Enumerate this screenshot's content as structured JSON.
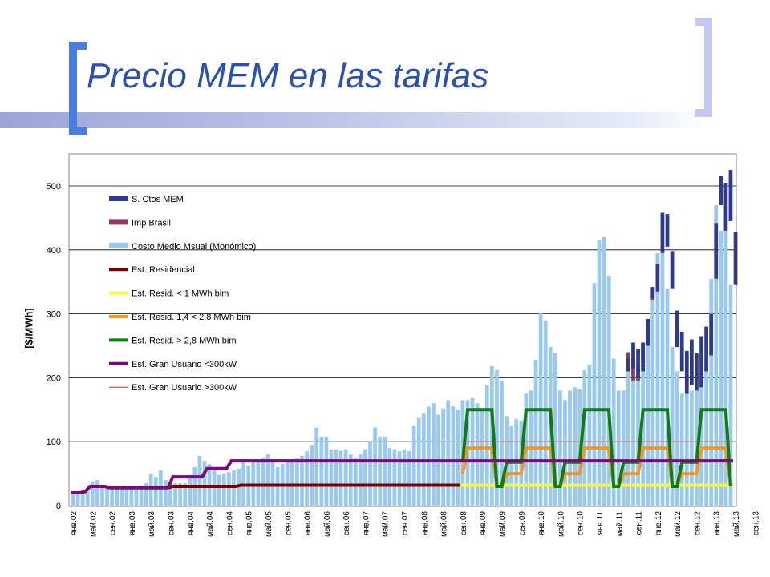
{
  "slide": {
    "title": "Precio MEM en las tarifas"
  },
  "chart_data": {
    "type": "bar",
    "ylabel": "[$/MWh]",
    "xlabel": "",
    "ylim": [
      0,
      550
    ],
    "yticks": [
      0,
      100,
      200,
      300,
      400,
      500
    ],
    "grid": true,
    "legend_position": "top-left",
    "start_month": "янв.02",
    "x_tick_labels": [
      "янв.02",
      "май.02",
      "сен.02",
      "янв.03",
      "май.03",
      "сен.03",
      "янв.04",
      "май.04",
      "сен.04",
      "янв.05",
      "май.05",
      "сен.05",
      "янв.06",
      "май.06",
      "сен.06",
      "янв.07",
      "май.07",
      "сен.07",
      "янв.08",
      "май.08",
      "сен.08",
      "янв.09",
      "май.09",
      "сен.09",
      "янв.10",
      "май.10",
      "сен.10",
      "янв.11",
      "май.11",
      "сен.11",
      "янв.12",
      "май.12",
      "сен.12",
      "янв.13",
      "май.13",
      "сен.13"
    ],
    "legend": [
      {
        "label": "S. Ctos MEM",
        "color": "#2e3a8f",
        "kind": "bar"
      },
      {
        "label": "Imp Brasil",
        "color": "#8b3a62",
        "kind": "bar"
      },
      {
        "label": "Costo Medio Msual (Monómico)",
        "color": "#99c8f0",
        "kind": "bar"
      },
      {
        "label": "Est. Residencial",
        "color": "#7a0000",
        "kind": "line"
      },
      {
        "label": "Est. Resid. < 1 MWh bim",
        "color": "#f5f542",
        "kind": "line"
      },
      {
        "label": "Est. Resid. 1,4 < 2,8 MWh bim",
        "color": "#f5961e",
        "kind": "line"
      },
      {
        "label": "Est. Resid. > 2,8 MWh bim",
        "color": "#0e7e0e",
        "kind": "line"
      },
      {
        "label": "Est. Gran Usuario <300kW",
        "color": "#7a0a7a",
        "kind": "line"
      },
      {
        "label": "Est. Gran Usuario >300kW",
        "color": "#e03030",
        "kind": "thinline"
      }
    ],
    "series": [
      {
        "name": "Costo Medio Msual (Monómico)",
        "values": [
          20,
          22,
          24,
          27,
          38,
          40,
          30,
          30,
          28,
          28,
          28,
          28,
          28,
          30,
          32,
          35,
          50,
          45,
          55,
          40,
          38,
          35,
          35,
          35,
          48,
          60,
          78,
          70,
          65,
          60,
          48,
          50,
          52,
          55,
          58,
          70,
          62,
          68,
          72,
          75,
          80,
          72,
          60,
          65,
          68,
          72,
          75,
          78,
          85,
          95,
          122,
          108,
          108,
          88,
          88,
          86,
          88,
          80,
          75,
          80,
          88,
          100,
          122,
          108,
          108,
          90,
          88,
          85,
          88,
          85,
          125,
          138,
          145,
          155,
          160,
          142,
          152,
          165,
          155,
          150,
          165,
          165,
          168,
          160,
          150,
          188,
          218,
          212,
          195,
          140,
          125,
          135,
          133,
          175,
          180,
          228,
          302,
          290,
          248,
          238,
          180,
          165,
          180,
          185,
          182,
          212,
          220,
          348,
          415,
          420,
          360,
          230,
          180,
          180,
          210,
          195,
          195,
          225,
          262,
          322,
          395,
          400,
          340,
          248,
          210,
          175,
          185,
          180,
          185,
          210,
          235,
          355,
          470,
          430,
          440,
          345
        ]
      },
      {
        "name": "Imp Brasil",
        "values": [
          0,
          0,
          0,
          0,
          0,
          0,
          0,
          0,
          0,
          0,
          0,
          0,
          0,
          0,
          0,
          0,
          0,
          0,
          0,
          0,
          0,
          0,
          0,
          0,
          0,
          0,
          0,
          0,
          0,
          0,
          0,
          0,
          0,
          0,
          0,
          0,
          0,
          0,
          0,
          0,
          0,
          0,
          0,
          0,
          0,
          0,
          0,
          0,
          0,
          0,
          0,
          0,
          0,
          0,
          0,
          0,
          0,
          0,
          0,
          0,
          0,
          0,
          0,
          0,
          0,
          0,
          0,
          0,
          0,
          0,
          0,
          0,
          0,
          0,
          0,
          0,
          0,
          0,
          0,
          0,
          0,
          0,
          0,
          0,
          0,
          0,
          0,
          0,
          0,
          0,
          0,
          0,
          0,
          0,
          0,
          0,
          0,
          0,
          0,
          0,
          0,
          0,
          0,
          0,
          0,
          0,
          0,
          0,
          0,
          0,
          0,
          0,
          0,
          0,
          30,
          35,
          25,
          30,
          25,
          18,
          0,
          0,
          0,
          0,
          0,
          0,
          0,
          0,
          0,
          0,
          0,
          0,
          0,
          0,
          0,
          0
        ]
      },
      {
        "name": "S. Ctos MEM",
        "values": [
          0,
          0,
          0,
          0,
          0,
          0,
          0,
          0,
          0,
          0,
          0,
          0,
          0,
          0,
          0,
          0,
          0,
          0,
          0,
          0,
          0,
          0,
          0,
          0,
          0,
          0,
          0,
          0,
          0,
          0,
          0,
          0,
          0,
          0,
          0,
          0,
          0,
          0,
          0,
          0,
          0,
          0,
          0,
          0,
          0,
          0,
          0,
          0,
          0,
          0,
          0,
          0,
          0,
          0,
          0,
          0,
          0,
          0,
          0,
          0,
          0,
          0,
          0,
          0,
          0,
          0,
          0,
          0,
          0,
          0,
          0,
          0,
          0,
          0,
          0,
          0,
          0,
          0,
          0,
          0,
          0,
          0,
          0,
          0,
          0,
          0,
          0,
          0,
          0,
          0,
          0,
          0,
          0,
          0,
          0,
          0,
          0,
          0,
          0,
          0,
          0,
          0,
          0,
          0,
          0,
          0,
          0,
          0,
          0,
          0,
          0,
          0,
          0,
          0,
          0,
          0,
          0,
          0,
          0,
          0,
          0,
          0,
          0,
          0,
          0,
          0,
          0,
          0,
          0,
          0,
          0,
          0,
          0,
          0,
          0,
          0,
          0,
          0,
          0,
          0,
          0,
          0,
          0,
          0,
          0,
          0,
          0,
          0,
          0,
          0,
          0,
          0,
          0,
          0,
          0,
          0,
          0,
          0,
          0,
          0,
          0,
          0,
          0,
          0,
          0,
          0,
          0,
          0,
          0,
          0,
          0,
          0,
          0,
          0,
          0,
          0,
          0,
          0,
          0,
          0,
          0,
          0,
          0,
          0,
          0,
          0,
          0,
          0
        ]
      }
    ],
    "stack_tops": [
      0,
      0,
      0,
      0,
      0,
      0,
      0,
      0,
      0,
      0,
      0,
      0,
      0,
      0,
      0,
      0,
      0,
      0,
      0,
      0,
      0,
      0,
      0,
      0,
      0,
      0,
      0,
      0,
      0,
      0,
      0,
      0,
      0,
      0,
      0,
      0,
      0,
      0,
      0,
      0,
      0,
      0,
      0,
      0,
      0,
      0,
      0,
      0,
      0,
      0,
      0,
      0,
      0,
      0,
      0,
      0,
      0,
      0,
      0,
      0,
      0,
      0,
      0,
      0,
      0,
      0,
      0,
      0,
      0,
      0,
      0,
      0,
      0,
      0,
      0,
      0,
      0,
      0,
      0,
      0,
      0,
      0,
      0,
      0,
      0,
      0,
      0,
      0,
      0,
      0,
      0,
      0,
      0,
      0,
      0,
      0,
      0,
      0,
      0,
      0,
      0,
      0,
      0,
      0,
      0,
      0,
      0,
      0,
      0,
      0,
      0,
      0,
      0,
      0,
      0,
      0,
      0,
      0,
      0,
      0,
      0,
      0,
      0,
      0,
      0,
      0,
      0,
      0,
      0,
      0,
      0,
      0,
      0,
      0,
      0,
      0,
      0,
      0,
      0,
      0,
      0,
      0,
      0,
      0,
      0,
      0,
      0,
      0,
      0,
      0,
      0,
      0,
      0,
      0,
      0,
      0,
      0,
      0,
      0,
      0,
      0,
      0,
      0,
      0,
      0,
      0,
      0,
      0,
      0,
      0,
      0,
      0,
      0,
      0,
      0,
      0,
      0,
      0,
      0,
      0,
      0,
      0,
      0,
      0,
      0,
      0,
      0,
      0
    ],
    "sctos_segments": [
      [
        114,
        210,
        230
      ],
      [
        115,
        215,
        255
      ],
      [
        116,
        200,
        245
      ],
      [
        117,
        210,
        255
      ],
      [
        118,
        250,
        292
      ],
      [
        119,
        325,
        342
      ],
      [
        120,
        335,
        378
      ],
      [
        121,
        395,
        458
      ],
      [
        122,
        405,
        456
      ],
      [
        123,
        340,
        398
      ],
      [
        124,
        248,
        305
      ],
      [
        125,
        210,
        272
      ],
      [
        126,
        175,
        242
      ],
      [
        127,
        188,
        260
      ],
      [
        128,
        180,
        238
      ],
      [
        129,
        185,
        265
      ],
      [
        130,
        210,
        280
      ],
      [
        131,
        235,
        300
      ],
      [
        132,
        355,
        442
      ],
      [
        133,
        470,
        516
      ],
      [
        134,
        430,
        505
      ],
      [
        135,
        445,
        525
      ],
      [
        136,
        345,
        428
      ]
    ],
    "lines": {
      "est_residencial": [
        20,
        20,
        20,
        22,
        30,
        30,
        30,
        30,
        28,
        28,
        28,
        28,
        28,
        28,
        28,
        28,
        28,
        28,
        28,
        28,
        28,
        30,
        30,
        30,
        30,
        30,
        30,
        30,
        30,
        30,
        30,
        30,
        30,
        30,
        30,
        32,
        32,
        32,
        32,
        32,
        32,
        32,
        32,
        32,
        32,
        32,
        32,
        32,
        32,
        32,
        32,
        32,
        32,
        32,
        32,
        32,
        32,
        32,
        32,
        32,
        32,
        32,
        32,
        32,
        32,
        32,
        32,
        32,
        32,
        32,
        32,
        32,
        32,
        32,
        32,
        32,
        32,
        32,
        32
      ],
      "gran_usuario_lt300": [
        20,
        20,
        20,
        22,
        30,
        30,
        30,
        30,
        28,
        28,
        28,
        28,
        28,
        28,
        28,
        28,
        28,
        28,
        28,
        28,
        28,
        45,
        45,
        45,
        45,
        45,
        45,
        45,
        58,
        58,
        58,
        58,
        58,
        70,
        70,
        70
      ],
      "gran_usuario_lt300_level": 70,
      "gran_usuario_gt300_level": 100,
      "resid_lt1": 32,
      "resid_14_28_high": 90,
      "resid_14_28_low": 50,
      "resid_gt28_high": 150,
      "resid_gt28_low": 30
    }
  }
}
